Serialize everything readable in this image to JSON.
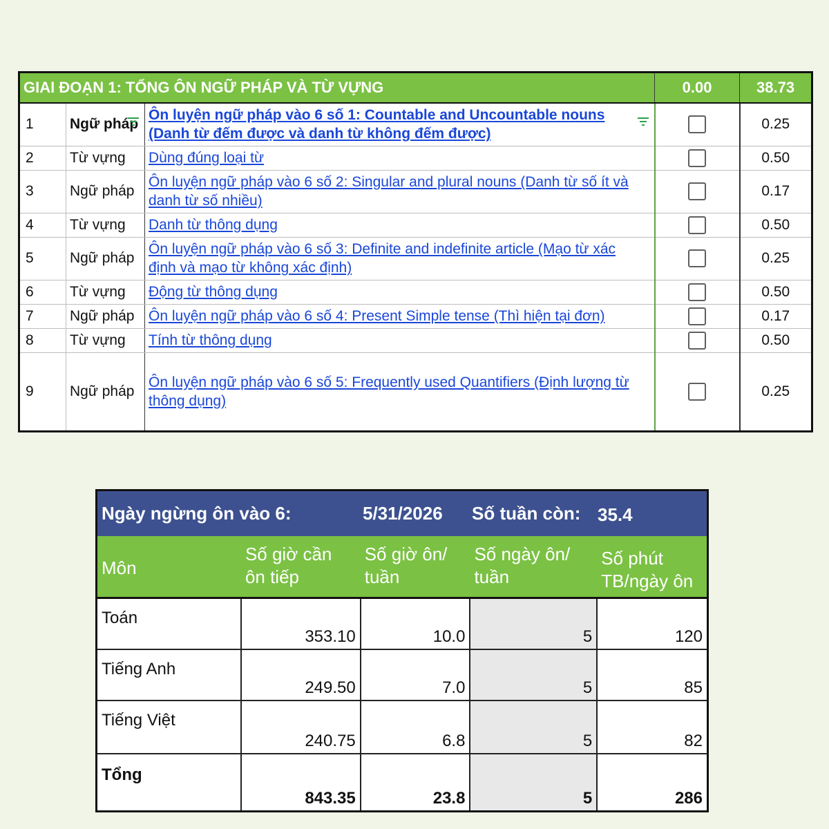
{
  "phase_table": {
    "header": {
      "title": "GIAI ĐOẠN 1: TỔNG ÔN NGỮ PHÁP VÀ TỪ VỰNG",
      "progress": "0.00",
      "total": "38.73"
    },
    "rows": [
      {
        "idx": "1",
        "category": "Ngữ pháp",
        "task": "Ôn luyện ngữ pháp vào 6 số 1: Countable and Uncountable nouns (Danh từ đếm được và danh từ không đếm được)",
        "done": false,
        "hours": "0.25"
      },
      {
        "idx": "2",
        "category": "Từ vựng",
        "task": "Dùng đúng loại từ",
        "done": false,
        "hours": "0.50"
      },
      {
        "idx": "3",
        "category": "Ngữ pháp",
        "task": "Ôn luyện ngữ pháp vào 6 số 2: Singular and plural nouns (Danh từ số ít và danh từ số nhiều)",
        "done": false,
        "hours": "0.17"
      },
      {
        "idx": "4",
        "category": "Từ vựng",
        "task": "Danh từ thông dụng",
        "done": false,
        "hours": "0.50"
      },
      {
        "idx": "5",
        "category": "Ngữ pháp",
        "task": "Ôn luyện ngữ pháp vào 6 số 3: Definite and indefinite article (Mạo từ xác định và mạo từ không xác định)",
        "done": false,
        "hours": "0.25"
      },
      {
        "idx": "6",
        "category": "Từ vựng",
        "task": "Động từ thông dụng",
        "done": false,
        "hours": "0.50"
      },
      {
        "idx": "7",
        "category": "Ngữ pháp",
        "task": "Ôn luyện ngữ pháp vào 6 số 4: Present Simple tense (Thì hiện tại đơn)",
        "done": false,
        "hours": "0.17"
      },
      {
        "idx": "8",
        "category": "Từ vựng",
        "task": "Tính từ thông dụng",
        "done": false,
        "hours": "0.50"
      },
      {
        "idx": "9",
        "category": "Ngữ pháp",
        "task": "Ôn luyện ngữ pháp vào 6 số 5: Frequently used Quantifiers (Định lượng từ thông dụng)",
        "done": false,
        "hours": "0.25"
      }
    ]
  },
  "summary_table": {
    "band": {
      "stop_label": "Ngày ngừng ôn vào 6:",
      "stop_date": "5/31/2026",
      "weeks_label": "Số tuần còn:",
      "weeks_value": "35.4"
    },
    "columns": [
      "Môn",
      "Số giờ cần ôn tiếp",
      "Số giờ ôn/ tuần",
      "Số ngày ôn/ tuần",
      "Số phút TB/ngày ôn"
    ],
    "rows": [
      {
        "subject": "Toán",
        "hours_left": "353.10",
        "hours_week": "10.0",
        "days_week": "5",
        "minutes_day": "120"
      },
      {
        "subject": "Tiếng Anh",
        "hours_left": "249.50",
        "hours_week": "7.0",
        "days_week": "5",
        "minutes_day": "85"
      },
      {
        "subject": "Tiếng Việt",
        "hours_left": "240.75",
        "hours_week": "6.8",
        "days_week": "5",
        "minutes_day": "82"
      }
    ],
    "total": {
      "subject": "Tổng",
      "hours_left": "843.35",
      "hours_week": "23.8",
      "days_week": "5",
      "minutes_day": "286"
    }
  }
}
